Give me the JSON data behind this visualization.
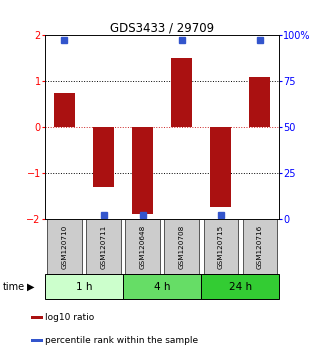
{
  "title": "GDS3433 / 29709",
  "samples": [
    "GSM120710",
    "GSM120711",
    "GSM120648",
    "GSM120708",
    "GSM120715",
    "GSM120716"
  ],
  "bar_values": [
    0.75,
    -1.3,
    -1.88,
    1.5,
    -1.72,
    1.1
  ],
  "bar_color": "#aa1111",
  "blue_sq_values": [
    1.9,
    -1.9,
    -1.9,
    1.9,
    -1.9,
    1.9
  ],
  "blue_color": "#3355cc",
  "ylim": [
    -2,
    2
  ],
  "y2_labels": [
    "0",
    "25",
    "50",
    "75",
    "100%"
  ],
  "y2_tick_positions": [
    -2,
    -1,
    0,
    1,
    2
  ],
  "yticks_left": [
    -2,
    -1,
    0,
    1,
    2
  ],
  "hlines_dotted": [
    -1,
    1
  ],
  "hline_red_dashed": 0,
  "groups": [
    {
      "label": "1 h",
      "start": 0,
      "end": 2,
      "color": "#ccffcc"
    },
    {
      "label": "4 h",
      "start": 2,
      "end": 4,
      "color": "#66dd66"
    },
    {
      "label": "24 h",
      "start": 4,
      "end": 6,
      "color": "#33cc33"
    }
  ],
  "legend_items": [
    {
      "color": "#aa1111",
      "label": "log10 ratio"
    },
    {
      "color": "#3355cc",
      "label": "percentile rank within the sample"
    }
  ],
  "time_label": "time",
  "bar_width": 0.55,
  "sample_box_color": "#cccccc",
  "sample_box_edge": "#555555"
}
